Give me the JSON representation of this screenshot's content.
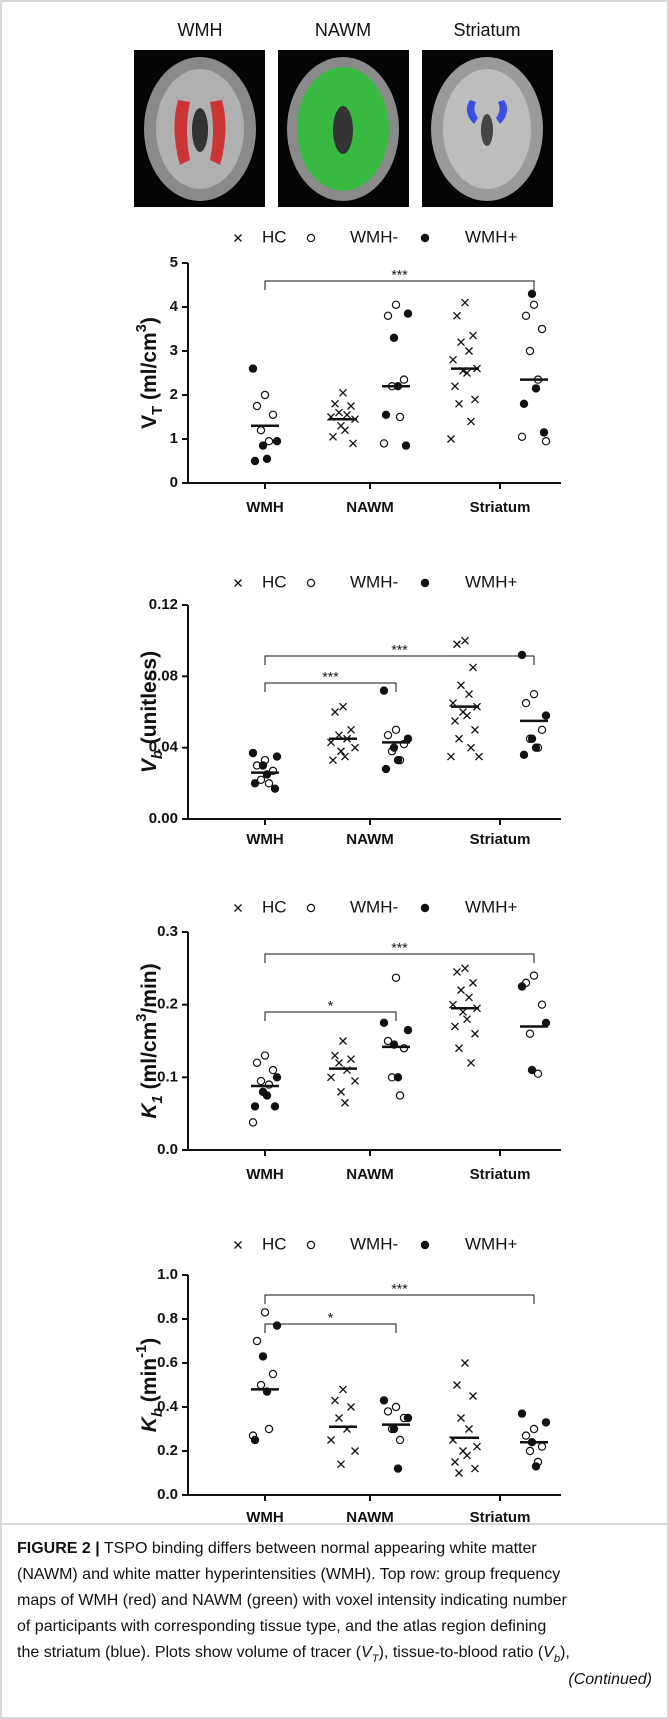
{
  "panels": [
    "WMH",
    "NAWM",
    "Striatum"
  ],
  "chart_data": [
    {
      "type": "dot",
      "ylabel": [
        {
          "text": "V",
          "style": "plain"
        },
        {
          "text": "T",
          "style": "sub"
        },
        {
          "text": " (ml/cm",
          "style": "plain"
        },
        {
          "text": "3",
          "style": "sup"
        },
        {
          "text": ")",
          "style": "plain"
        }
      ],
      "categories": [
        "WMH",
        "NAWM",
        "Striatum"
      ],
      "ylim": [
        0,
        5
      ],
      "yticks": [
        0,
        1,
        2,
        3,
        4,
        5
      ],
      "series": [
        {
          "name": "HC",
          "marker": "x",
          "values": [
            [],
            [
              2.05,
              1.8,
              1.75,
              1.6,
              1.55,
              1.5,
              1.45,
              1.3,
              1.2,
              1.05,
              0.9
            ],
            [
              4.1,
              3.8,
              3.35,
              3.2,
              3.0,
              2.8,
              2.6,
              2.55,
              2.5,
              2.2,
              1.9,
              1.8,
              1.4,
              1.0
            ]
          ]
        },
        {
          "name": "WMH-",
          "marker": "open",
          "values": [
            [
              2.0,
              1.75,
              1.55,
              1.2,
              0.95
            ],
            [
              4.05,
              3.8,
              2.35,
              2.2,
              1.5,
              0.9
            ],
            [
              4.05,
              3.8,
              3.5,
              3.0,
              2.35,
              1.05,
              0.95
            ]
          ]
        },
        {
          "name": "WMH+",
          "marker": "filled",
          "values": [
            [
              2.6,
              0.95,
              0.85,
              0.55,
              0.5
            ],
            [
              3.85,
              3.3,
              2.2,
              1.55,
              0.85
            ],
            [
              4.3,
              2.15,
              1.8,
              1.15
            ]
          ]
        }
      ],
      "hc_medians": [
        null,
        1.45,
        2.6
      ],
      "patient_medians": [
        1.3,
        2.2,
        2.35
      ],
      "annotations": [
        "***"
      ]
    },
    {
      "type": "dot",
      "ylabel": [
        {
          "text": "V",
          "style": "italic"
        },
        {
          "text": "b",
          "style": "sub-italic"
        },
        {
          "text": " (unitless)",
          "style": "plain"
        }
      ],
      "categories": [
        "WMH",
        "NAWM",
        "Striatum"
      ],
      "ylim": [
        0,
        0.12
      ],
      "yticks": [
        {
          "value": 0,
          "label": "0.00"
        },
        0.04,
        0.08,
        0.12
      ],
      "series": [
        {
          "name": "HC",
          "marker": "x",
          "values": [
            [],
            [
              0.063,
              0.06,
              0.05,
              0.047,
              0.045,
              0.043,
              0.04,
              0.038,
              0.035,
              0.033
            ],
            [
              0.1,
              0.098,
              0.085,
              0.075,
              0.07,
              0.065,
              0.063,
              0.06,
              0.058,
              0.055,
              0.05,
              0.045,
              0.04,
              0.035,
              0.035
            ]
          ]
        },
        {
          "name": "WMH-",
          "marker": "open",
          "values": [
            [
              0.033,
              0.03,
              0.027,
              0.022,
              0.02
            ],
            [
              0.05,
              0.047,
              0.042,
              0.038,
              0.033
            ],
            [
              0.07,
              0.065,
              0.05,
              0.045,
              0.04
            ]
          ]
        },
        {
          "name": "WMH+",
          "marker": "filled",
          "values": [
            [
              0.037,
              0.035,
              0.03,
              0.025,
              0.02,
              0.017
            ],
            [
              0.072,
              0.045,
              0.04,
              0.033,
              0.028
            ],
            [
              0.092,
              0.058,
              0.045,
              0.04,
              0.036
            ]
          ]
        }
      ],
      "hc_medians": [
        null,
        0.045,
        0.063
      ],
      "patient_medians": [
        0.026,
        0.043,
        0.055
      ],
      "annotations": [
        "***",
        "***"
      ]
    },
    {
      "type": "dot",
      "ylabel": [
        {
          "text": "K",
          "style": "italic"
        },
        {
          "text": "1",
          "style": "sub-italic"
        },
        {
          "text": " (ml/cm",
          "style": "plain"
        },
        {
          "text": "3",
          "style": "sup"
        },
        {
          "text": "/min)",
          "style": "plain"
        }
      ],
      "categories": [
        "WMH",
        "NAWM",
        "Striatum"
      ],
      "ylim": [
        0,
        0.3
      ],
      "yticks": [
        {
          "value": 0,
          "label": "0.0"
        },
        0.1,
        0.2,
        0.3
      ],
      "series": [
        {
          "name": "HC",
          "marker": "x",
          "values": [
            [],
            [
              0.15,
              0.13,
              0.125,
              0.12,
              0.11,
              0.1,
              0.095,
              0.08,
              0.065
            ],
            [
              0.25,
              0.245,
              0.23,
              0.22,
              0.21,
              0.2,
              0.195,
              0.19,
              0.18,
              0.17,
              0.16,
              0.14,
              0.12
            ]
          ]
        },
        {
          "name": "WMH-",
          "marker": "open",
          "values": [
            [
              0.13,
              0.12,
              0.11,
              0.095,
              0.09,
              0.038
            ],
            [
              0.237,
              0.15,
              0.14,
              0.1,
              0.075
            ],
            [
              0.24,
              0.23,
              0.2,
              0.16,
              0.105
            ]
          ]
        },
        {
          "name": "WMH+",
          "marker": "filled",
          "values": [
            [
              0.1,
              0.08,
              0.075,
              0.06,
              0.06
            ],
            [
              0.175,
              0.165,
              0.145,
              0.1
            ],
            [
              0.225,
              0.175,
              0.11
            ]
          ]
        }
      ],
      "hc_medians": [
        null,
        0.112,
        0.195
      ],
      "patient_medians": [
        0.088,
        0.142,
        0.17
      ],
      "annotations": [
        "***",
        "*"
      ]
    },
    {
      "type": "dot",
      "ylabel": [
        {
          "text": "K",
          "style": "italic"
        },
        {
          "text": "b",
          "style": "sub-italic"
        },
        {
          "text": " (min",
          "style": "plain"
        },
        {
          "text": "-1",
          "style": "sup"
        },
        {
          "text": ")",
          "style": "plain"
        }
      ],
      "categories": [
        "WMH",
        "NAWM",
        "Striatum"
      ],
      "ylim": [
        0,
        1
      ],
      "yticks": [
        {
          "value": 0,
          "label": "0.0"
        },
        0.2,
        0.4,
        0.6,
        0.8,
        {
          "value": 1,
          "label": "1.0"
        }
      ],
      "series": [
        {
          "name": "HC",
          "marker": "x",
          "values": [
            [],
            [
              0.48,
              0.43,
              0.4,
              0.35,
              0.3,
              0.25,
              0.2,
              0.14
            ],
            [
              0.6,
              0.5,
              0.45,
              0.35,
              0.3,
              0.25,
              0.22,
              0.2,
              0.18,
              0.15,
              0.12,
              0.1
            ]
          ]
        },
        {
          "name": "WMH-",
          "marker": "open",
          "values": [
            [
              0.83,
              0.7,
              0.55,
              0.5,
              0.3,
              0.27
            ],
            [
              0.4,
              0.38,
              0.35,
              0.3,
              0.25
            ],
            [
              0.3,
              0.27,
              0.22,
              0.2,
              0.15
            ]
          ]
        },
        {
          "name": "WMH+",
          "marker": "filled",
          "values": [
            [
              0.77,
              0.63,
              0.47,
              0.25
            ],
            [
              0.43,
              0.35,
              0.3,
              0.12
            ],
            [
              0.37,
              0.33,
              0.24,
              0.13
            ]
          ]
        }
      ],
      "hc_medians": [
        null,
        0.31,
        0.26
      ],
      "patient_medians": [
        0.48,
        0.32,
        0.24
      ],
      "annotations": [
        "***",
        "*"
      ]
    }
  ],
  "caption": [
    [
      {
        "text": "FIGURE 2 |",
        "style": "bold"
      },
      {
        "text": " TSPO binding differs between normal appearing white matter",
        "style": "plain"
      }
    ],
    [
      {
        "text": "(NAWM) and white matter hyperintensities (WMH). Top row: group frequency",
        "style": "plain"
      }
    ],
    [
      {
        "text": "maps of WMH (red) and NAWM (green) with voxel intensity indicating number",
        "style": "plain"
      }
    ],
    [
      {
        "text": "of participants with corresponding tissue type, and the atlas region defining",
        "style": "plain"
      }
    ],
    [
      {
        "text": "the striatum (blue). Plots show volume of tracer (",
        "style": "plain"
      },
      {
        "text": "V",
        "style": "italic"
      },
      {
        "text": "T",
        "style": "sub-italic"
      },
      {
        "text": "), tissue-to-blood ratio (",
        "style": "plain"
      },
      {
        "text": "V",
        "style": "italic"
      },
      {
        "text": "b",
        "style": "sub-italic"
      },
      {
        "text": "),",
        "style": "plain"
      }
    ],
    [
      {
        "text": "(Continued)",
        "style": "italic"
      }
    ]
  ]
}
